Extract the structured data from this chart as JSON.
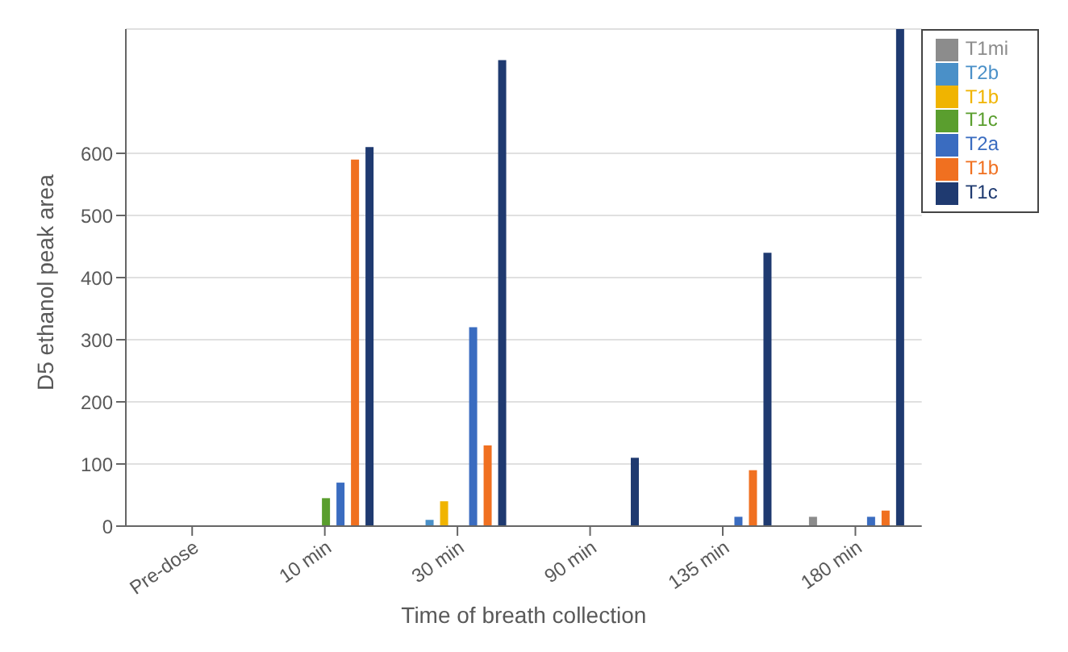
{
  "chart_data": {
    "type": "bar",
    "xlabel": "Time of breath collection",
    "ylabel": "D5 ethanol peak area",
    "categories": [
      "Pre-dose",
      "10 min",
      "30 min",
      "90 min",
      "135 min",
      "180 min"
    ],
    "series": [
      {
        "name": "T1mi",
        "color": "#8c8c8c",
        "values": [
          0,
          0,
          0,
          0,
          0,
          15
        ]
      },
      {
        "name": "T2b",
        "color": "#4a90c8",
        "values": [
          0,
          0,
          10,
          0,
          0,
          0
        ]
      },
      {
        "name": "T1b",
        "color": "#f0b400",
        "values": [
          0,
          0,
          40,
          0,
          0,
          0
        ]
      },
      {
        "name": "T1c",
        "color": "#5a9e2e",
        "values": [
          0,
          45,
          0,
          0,
          0,
          0
        ]
      },
      {
        "name": "T2a",
        "color": "#3a6cc0",
        "values": [
          0,
          70,
          320,
          0,
          15,
          15
        ]
      },
      {
        "name": "T1b",
        "color": "#f07020",
        "values": [
          0,
          590,
          130,
          0,
          90,
          25
        ]
      },
      {
        "name": "T1c",
        "color": "#1f3a70",
        "values": [
          0,
          610,
          750,
          110,
          440,
          800
        ]
      }
    ],
    "ylim": [
      0,
      800
    ],
    "yticks": [
      0,
      100,
      200,
      300,
      400,
      500,
      600
    ],
    "grid": "y",
    "legend": "top right"
  }
}
